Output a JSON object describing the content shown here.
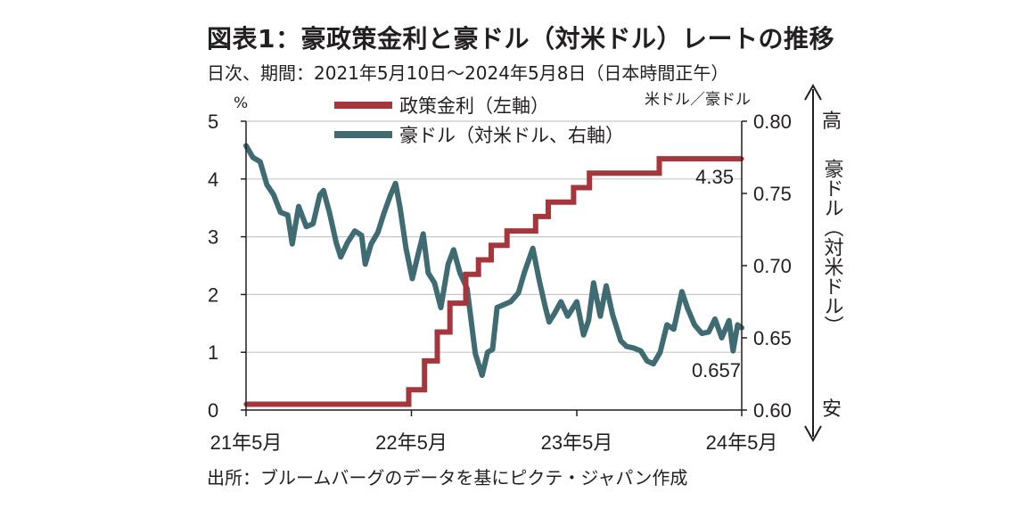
{
  "title": "図表1：豪政策金利と豪ドル（対米ドル）レートの推移",
  "subtitle": "日次、期間：2021年5月10日～2024年5月8日（日本時間正午）",
  "source": "出所：ブルームバーグのデータを基にピクテ・ジャパン作成",
  "colors": {
    "policy_rate": "#a5363b",
    "aud": "#3f6b73",
    "grid": "#c8c8c8",
    "axis": "#231f20"
  },
  "chart_data": {
    "type": "line",
    "left_axis": {
      "unit": "%",
      "ylim": [
        0,
        5
      ],
      "ticks": [
        "0",
        "1",
        "2",
        "3",
        "4",
        "5"
      ]
    },
    "right_axis": {
      "unit": "米ドル／豪ドル",
      "ylim": [
        0.6,
        0.8
      ],
      "ticks": [
        "0.60",
        "0.65",
        "0.70",
        "0.75",
        "0.80"
      ]
    },
    "xlim": [
      "2021-05-10",
      "2024-05-08"
    ],
    "x_ticks": [
      {
        "date": "2021-05-10",
        "label": "21年5月"
      },
      {
        "date": "2022-05-10",
        "label": "22年5月"
      },
      {
        "date": "2023-05-10",
        "label": "23年5月"
      },
      {
        "date": "2024-05-08",
        "label": "24年5月"
      }
    ],
    "grid": "horizontal",
    "legend_position": "top-center",
    "side_annotation": {
      "top": "高",
      "middle": "豪ドル（対米ドル）",
      "bottom": "安"
    },
    "series": [
      {
        "name": "政策金利（左軸）",
        "axis": "left",
        "step": true,
        "points": [
          [
            "2021-05-10",
            0.1
          ],
          [
            "2022-05-04",
            0.35
          ],
          [
            "2022-06-08",
            0.85
          ],
          [
            "2022-07-06",
            1.35
          ],
          [
            "2022-08-03",
            1.85
          ],
          [
            "2022-09-07",
            2.35
          ],
          [
            "2022-10-05",
            2.6
          ],
          [
            "2022-11-02",
            2.85
          ],
          [
            "2022-12-07",
            3.1
          ],
          [
            "2023-02-08",
            3.35
          ],
          [
            "2023-03-08",
            3.6
          ],
          [
            "2023-05-03",
            3.85
          ],
          [
            "2023-06-07",
            4.1
          ],
          [
            "2023-11-08",
            4.35
          ],
          [
            "2024-05-08",
            4.35
          ]
        ],
        "end_label": "4.35"
      },
      {
        "name": "豪ドル（対米ドル、右軸）",
        "axis": "right",
        "step": false,
        "points": [
          [
            "2021-05-10",
            0.783
          ],
          [
            "2021-05-25",
            0.775
          ],
          [
            "2021-06-10",
            0.772
          ],
          [
            "2021-06-25",
            0.756
          ],
          [
            "2021-07-10",
            0.749
          ],
          [
            "2021-07-25",
            0.737
          ],
          [
            "2021-08-10",
            0.735
          ],
          [
            "2021-08-20",
            0.715
          ],
          [
            "2021-09-03",
            0.741
          ],
          [
            "2021-09-20",
            0.727
          ],
          [
            "2021-10-05",
            0.729
          ],
          [
            "2021-10-20",
            0.749
          ],
          [
            "2021-10-28",
            0.752
          ],
          [
            "2021-11-10",
            0.737
          ],
          [
            "2021-11-25",
            0.716
          ],
          [
            "2021-12-05",
            0.706
          ],
          [
            "2021-12-20",
            0.716
          ],
          [
            "2022-01-05",
            0.724
          ],
          [
            "2022-01-20",
            0.721
          ],
          [
            "2022-01-28",
            0.701
          ],
          [
            "2022-02-10",
            0.715
          ],
          [
            "2022-02-25",
            0.723
          ],
          [
            "2022-03-10",
            0.736
          ],
          [
            "2022-03-25",
            0.749
          ],
          [
            "2022-04-05",
            0.757
          ],
          [
            "2022-04-15",
            0.74
          ],
          [
            "2022-04-28",
            0.712
          ],
          [
            "2022-05-12",
            0.691
          ],
          [
            "2022-05-25",
            0.708
          ],
          [
            "2022-06-05",
            0.722
          ],
          [
            "2022-06-16",
            0.695
          ],
          [
            "2022-06-30",
            0.688
          ],
          [
            "2022-07-14",
            0.671
          ],
          [
            "2022-07-30",
            0.701
          ],
          [
            "2022-08-11",
            0.711
          ],
          [
            "2022-08-25",
            0.695
          ],
          [
            "2022-09-10",
            0.684
          ],
          [
            "2022-09-28",
            0.639
          ],
          [
            "2022-10-13",
            0.624
          ],
          [
            "2022-10-25",
            0.64
          ],
          [
            "2022-11-05",
            0.642
          ],
          [
            "2022-11-15",
            0.671
          ],
          [
            "2022-11-30",
            0.673
          ],
          [
            "2022-12-15",
            0.675
          ],
          [
            "2023-01-01",
            0.681
          ],
          [
            "2023-01-15",
            0.696
          ],
          [
            "2023-02-02",
            0.712
          ],
          [
            "2023-02-16",
            0.69
          ],
          [
            "2023-03-01",
            0.672
          ],
          [
            "2023-03-10",
            0.661
          ],
          [
            "2023-03-22",
            0.667
          ],
          [
            "2023-04-05",
            0.675
          ],
          [
            "2023-04-20",
            0.665
          ],
          [
            "2023-05-10",
            0.675
          ],
          [
            "2023-05-25",
            0.652
          ],
          [
            "2023-06-05",
            0.662
          ],
          [
            "2023-06-16",
            0.688
          ],
          [
            "2023-07-01",
            0.665
          ],
          [
            "2023-07-14",
            0.686
          ],
          [
            "2023-07-28",
            0.666
          ],
          [
            "2023-08-15",
            0.648
          ],
          [
            "2023-08-28",
            0.644
          ],
          [
            "2023-09-12",
            0.643
          ],
          [
            "2023-09-28",
            0.641
          ],
          [
            "2023-10-12",
            0.634
          ],
          [
            "2023-10-26",
            0.632
          ],
          [
            "2023-11-10",
            0.64
          ],
          [
            "2023-11-25",
            0.659
          ],
          [
            "2023-12-10",
            0.656
          ],
          [
            "2023-12-28",
            0.682
          ],
          [
            "2024-01-10",
            0.67
          ],
          [
            "2024-01-25",
            0.659
          ],
          [
            "2024-02-10",
            0.653
          ],
          [
            "2024-02-25",
            0.654
          ],
          [
            "2024-03-10",
            0.663
          ],
          [
            "2024-03-25",
            0.65
          ],
          [
            "2024-04-10",
            0.662
          ],
          [
            "2024-04-19",
            0.641
          ],
          [
            "2024-04-29",
            0.659
          ],
          [
            "2024-05-08",
            0.657
          ]
        ],
        "end_label": "0.657"
      }
    ]
  }
}
